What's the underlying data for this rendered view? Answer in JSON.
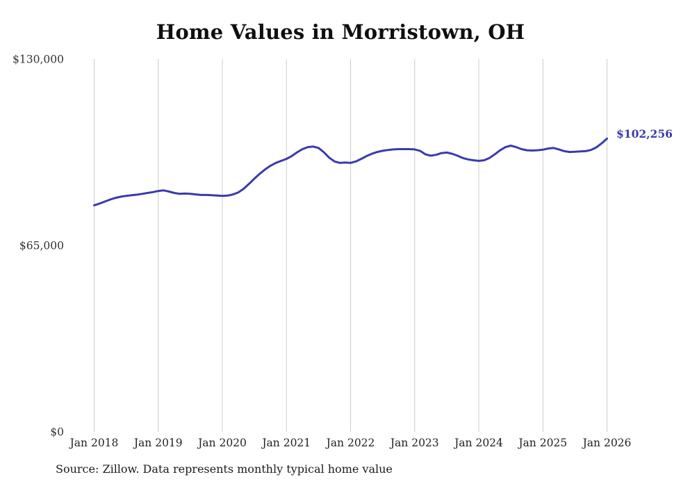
{
  "title": "Home Values in Morristown, OH",
  "end_label": "$102,256",
  "source_note": "Source: Zillow. Data represents monthly typical home value",
  "colors": {
    "line": "#3a3aad",
    "grid": "#cccccc",
    "tick_label": "#222222",
    "axis_label": "#333333",
    "end_label": "#3a3aad"
  },
  "chart_data": {
    "type": "line",
    "title": "Home Values in Morristown, OH",
    "xlabel": "",
    "ylabel": "",
    "ylim": [
      0,
      130000
    ],
    "grid": "vertical-only",
    "legend": "none",
    "x_tick_labels": [
      "Jan 2018",
      "Jan 2019",
      "Jan 2020",
      "Jan 2021",
      "Jan 2022",
      "Jan 2023",
      "Jan 2024",
      "Jan 2025",
      "Jan 2026"
    ],
    "x_tick_positions": [
      0,
      12,
      24,
      36,
      48,
      60,
      72,
      84,
      96
    ],
    "y_ticks": [
      0,
      65000,
      130000
    ],
    "y_tick_labels": [
      "$0",
      "$65,000",
      "$130,000"
    ],
    "latest_value": 102256,
    "latest_value_label": "$102,256",
    "series": [
      {
        "name": "Monthly typical home value",
        "start_month": "2018-01",
        "end_month": "2026-01",
        "values": [
          79000,
          79600,
          80300,
          81000,
          81600,
          82000,
          82300,
          82500,
          82700,
          83000,
          83300,
          83600,
          84000,
          84200,
          83800,
          83300,
          83000,
          83100,
          83000,
          82800,
          82600,
          82600,
          82500,
          82400,
          82300,
          82400,
          82800,
          83500,
          84800,
          86500,
          88300,
          90000,
          91500,
          92800,
          93800,
          94500,
          95200,
          96200,
          97500,
          98600,
          99300,
          99500,
          99000,
          97500,
          95600,
          94300,
          93800,
          93900,
          93800,
          94300,
          95200,
          96200,
          97000,
          97600,
          98000,
          98300,
          98500,
          98600,
          98600,
          98600,
          98500,
          98000,
          96800,
          96300,
          96600,
          97200,
          97400,
          97000,
          96300,
          95500,
          95000,
          94700,
          94500,
          94700,
          95500,
          96800,
          98200,
          99300,
          99800,
          99300,
          98600,
          98200,
          98100,
          98200,
          98400,
          98800,
          99000,
          98500,
          97900,
          97600,
          97700,
          97800,
          97900,
          98300,
          99200,
          100600,
          102256
        ]
      }
    ]
  }
}
